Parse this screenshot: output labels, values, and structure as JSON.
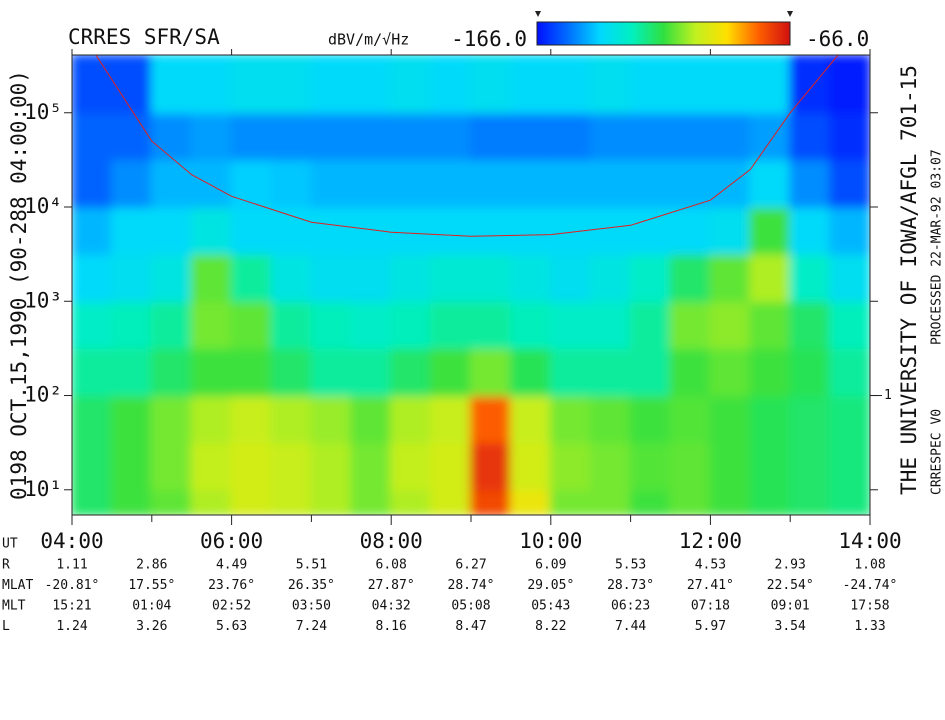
{
  "chart_data": {
    "type": "spectrogram",
    "title": "CRRES SFR/SA",
    "left_label": "0198  OCT.15,1990  (90-288 04:00:00)",
    "right_labels": [
      "THE UNIVERSITY OF IOWA/AFGL 701-15",
      "PROCESSED 22-MAR-92  03:07",
      "CRRESPEC V0"
    ],
    "colorbar": {
      "label": "dBV/m/√Hz",
      "min": {
        "value": -166,
        "label": "-166.0"
      },
      "max": {
        "value": -66,
        "label": "-66.0"
      },
      "colors": [
        "#0010ff",
        "#0070ff",
        "#00d8ff",
        "#00f0c0",
        "#30e040",
        "#c0f020",
        "#ffe000",
        "#ff6000",
        "#d01010"
      ]
    },
    "time_bins": [
      4,
      4.5,
      5,
      5.5,
      6,
      6.5,
      7,
      7.5,
      8,
      8.5,
      9,
      9.5,
      10,
      10.5,
      11,
      11.5,
      12,
      12.5,
      13,
      13.5,
      14
    ],
    "frequency_bins": [
      5.4,
      10,
      32,
      100,
      320,
      1000,
      3200,
      10000,
      32000,
      100000,
      410000
    ],
    "values": [
      [
        -120,
        -115,
        -112,
        -105,
        -100,
        -102,
        -105,
        -110,
        -105,
        -100,
        -75,
        -95,
        -110,
        -110,
        -115,
        -112,
        -115,
        -118,
        -120,
        -122
      ],
      [
        -120,
        -115,
        -110,
        -103,
        -100,
        -102,
        -105,
        -110,
        -103,
        -100,
        -72,
        -100,
        -108,
        -110,
        -113,
        -112,
        -115,
        -118,
        -120,
        -122
      ],
      [
        -120,
        -115,
        -110,
        -105,
        -102,
        -105,
        -107,
        -112,
        -105,
        -102,
        -78,
        -102,
        -110,
        -112,
        -115,
        -113,
        -115,
        -118,
        -120,
        -122
      ],
      [
        -125,
        -125,
        -120,
        -115,
        -115,
        -120,
        -125,
        -125,
        -120,
        -115,
        -110,
        -118,
        -125,
        -125,
        -125,
        -115,
        -112,
        -115,
        -118,
        -125
      ],
      [
        -130,
        -128,
        -125,
        -110,
        -112,
        -125,
        -128,
        -130,
        -128,
        -125,
        -125,
        -128,
        -130,
        -130,
        -125,
        -110,
        -108,
        -112,
        -120,
        -128
      ],
      [
        -140,
        -138,
        -135,
        -112,
        -125,
        -135,
        -138,
        -138,
        -135,
        -132,
        -132,
        -135,
        -138,
        -135,
        -130,
        -120,
        -112,
        -105,
        -130,
        -138
      ],
      [
        -145,
        -140,
        -140,
        -135,
        -140,
        -140,
        -140,
        -140,
        -140,
        -140,
        -140,
        -140,
        -140,
        -140,
        -140,
        -140,
        -138,
        -115,
        -140,
        -145
      ],
      [
        -155,
        -150,
        -145,
        -145,
        -142,
        -143,
        -145,
        -145,
        -145,
        -145,
        -145,
        -145,
        -145,
        -145,
        -145,
        -145,
        -145,
        -140,
        -150,
        -158
      ],
      [
        -155,
        -155,
        -150,
        -148,
        -150,
        -150,
        -150,
        -150,
        -150,
        -150,
        -152,
        -152,
        -152,
        -150,
        -150,
        -150,
        -150,
        -148,
        -158,
        -162
      ],
      [
        -158,
        -158,
        -140,
        -140,
        -138,
        -138,
        -140,
        -140,
        -138,
        -140,
        -138,
        -140,
        -140,
        -138,
        -140,
        -140,
        -140,
        -140,
        -162,
        -164
      ]
    ],
    "xlim": [
      4,
      14
    ],
    "xticks": [
      {
        "value": 4,
        "label": "04:00"
      },
      {
        "value": 6,
        "label": "06:00"
      },
      {
        "value": 8,
        "label": "08:00"
      },
      {
        "value": 10,
        "label": "10:00"
      },
      {
        "value": 12,
        "label": "12:00"
      },
      {
        "value": 14,
        "label": "14:00"
      }
    ],
    "xminor_ticks": [
      5,
      7,
      9,
      11,
      13
    ],
    "ylim": [
      5.4,
      410000
    ],
    "yscale": "log",
    "yticks": [
      {
        "value": 10,
        "label": "10¹"
      },
      {
        "value": 100,
        "label": "10²"
      },
      {
        "value": 1000,
        "label": "10³"
      },
      {
        "value": 10000,
        "label": "10⁴"
      },
      {
        "value": 100000,
        "label": "10⁵"
      }
    ],
    "y2lim": [
      0.054,
      4100
    ],
    "y2ticks": [
      1
    ],
    "curve": {
      "color": "#e02020",
      "x": [
        4.3,
        5,
        5.5,
        6,
        7,
        8,
        9,
        10,
        11,
        12,
        12.5,
        13,
        13.6
      ],
      "values": [
        410000,
        50000,
        22000,
        13000,
        6900,
        5400,
        4900,
        5100,
        6400,
        11800,
        25000,
        100000,
        410000
      ]
    },
    "ephemeris": {
      "x_label": "UT",
      "rows": [
        {
          "label": "R",
          "values": [
            "1.11",
            "2.86",
            "4.49",
            "5.51",
            "6.08",
            "6.27",
            "6.09",
            "5.53",
            "4.53",
            "2.93",
            "1.08"
          ]
        },
        {
          "label": "MLAT",
          "values": [
            "-20.81°",
            "17.55°",
            "23.76°",
            "26.35°",
            "27.87°",
            "28.74°",
            "29.05°",
            "28.73°",
            "27.41°",
            "22.54°",
            "-24.74°"
          ]
        },
        {
          "label": "MLT",
          "values": [
            "15:21",
            "01:04",
            "02:52",
            "03:50",
            "04:32",
            "05:08",
            "05:43",
            "06:23",
            "07:18",
            "09:01",
            "17:58"
          ]
        },
        {
          "label": "L",
          "values": [
            "1.24",
            "3.26",
            "5.63",
            "7.24",
            "8.16",
            "8.47",
            "8.22",
            "7.44",
            "5.97",
            "3.54",
            "1.33"
          ]
        }
      ]
    }
  }
}
